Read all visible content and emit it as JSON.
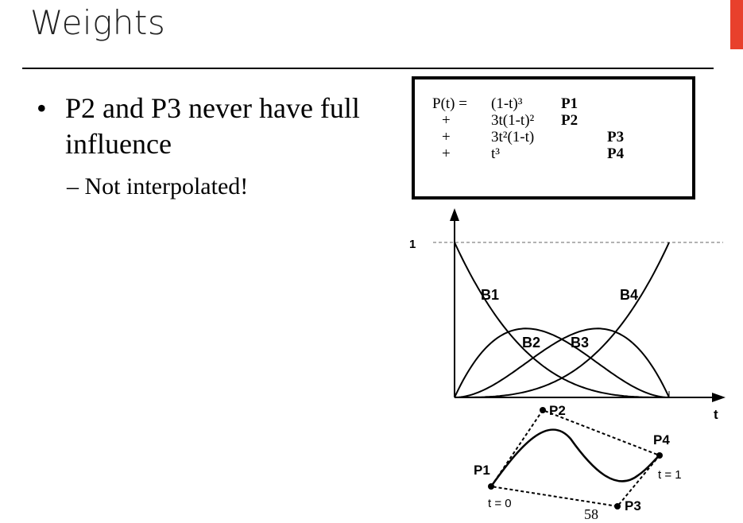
{
  "slide": {
    "title": "Weights",
    "bullet": "P2 and P3 never have full influence",
    "subbullet": "– Not interpolated!",
    "page_number": "58",
    "accent_color": "#e8402c"
  },
  "formula": {
    "rows": [
      {
        "op": "P(t) =",
        "coef": "(1-t)³",
        "point": "P1"
      },
      {
        "op": "+",
        "coef": "3t(1-t)²",
        "point": "P2"
      },
      {
        "op": "+",
        "coef": "3t²(1-t)",
        "point": "P3"
      },
      {
        "op": "+",
        "coef": "t³",
        "point": "P4"
      }
    ]
  },
  "chart_data": {
    "type": "line",
    "title": "",
    "xlabel": "t",
    "ylabel": "",
    "xlim": [
      0,
      1
    ],
    "ylim": [
      0,
      1
    ],
    "y_tick_labels": [
      "1"
    ],
    "series": [
      {
        "name": "B1",
        "formula": "(1-t)^3"
      },
      {
        "name": "B2",
        "formula": "3t(1-t)^2"
      },
      {
        "name": "B3",
        "formula": "3t^2(1-t)"
      },
      {
        "name": "B4",
        "formula": "t^3"
      }
    ]
  },
  "bezier_figure": {
    "control_points": [
      "P1",
      "P2",
      "P3",
      "P4"
    ],
    "start_label": "t = 0",
    "end_label": "t = 1"
  }
}
